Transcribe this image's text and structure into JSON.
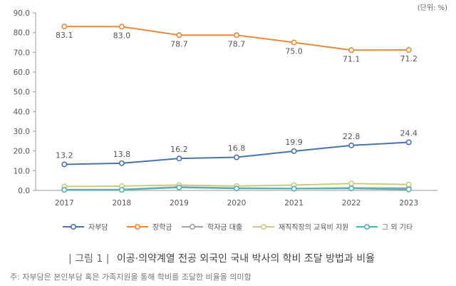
{
  "unit_label": "(단위: %)",
  "caption": {
    "figure": "| 그림 1 |",
    "title": "이공·의약계열 전공 외국인 국내 박사의 학비 조달 방법과 비율"
  },
  "note": "주: 자부담은 본인부담 혹은 가족지원을 통해 학비를 조달한 비율을 의미함",
  "chart_data": {
    "type": "line",
    "title": "",
    "xlabel": "",
    "ylabel": "",
    "x": [
      "2017",
      "2018",
      "2019",
      "2020",
      "2021",
      "2022",
      "2023"
    ],
    "ylim": [
      0,
      90
    ],
    "yticks": [
      "0.0",
      "10.0",
      "20.0",
      "30.0",
      "40.0",
      "50.0",
      "60.0",
      "70.0",
      "80.0",
      "90.0"
    ],
    "grid": false,
    "legend_position": "bottom",
    "series": [
      {
        "name": "자부담",
        "color": "#4a72b0",
        "values": [
          13.2,
          13.8,
          16.2,
          16.8,
          19.9,
          22.8,
          24.4
        ],
        "labels": [
          "13.2",
          "13.8",
          "16.2",
          "16.8",
          "19.9",
          "22.8",
          "24.4"
        ]
      },
      {
        "name": "장학금",
        "color": "#ea8a3a",
        "values": [
          83.1,
          83.0,
          78.7,
          78.7,
          75.0,
          71.1,
          71.2
        ],
        "labels": [
          "83.1",
          "83.0",
          "78.7",
          "78.7",
          "75.0",
          "71.1",
          "71.2"
        ]
      },
      {
        "name": "학자금 대출",
        "color": "#a3a3a3",
        "values": [
          0.4,
          0.5,
          1.8,
          1.2,
          1.0,
          1.3,
          1.2
        ]
      },
      {
        "name": "재직직장의 교육비 지원",
        "color": "#c9cc7e",
        "values": [
          2.0,
          2.2,
          2.7,
          2.2,
          2.7,
          3.5,
          3.0
        ]
      },
      {
        "name": "그 외 기타",
        "color": "#4fb3b5",
        "values": [
          0.3,
          0.3,
          1.5,
          1.0,
          0.9,
          1.0,
          0.5
        ]
      }
    ]
  }
}
